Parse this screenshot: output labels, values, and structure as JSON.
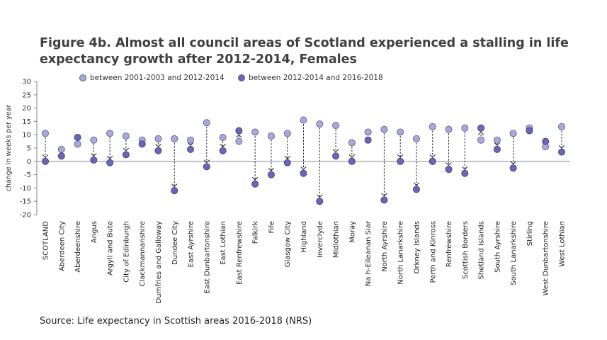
{
  "chart_data": {
    "type": "scatter",
    "title": "Figure 4b. Almost all council areas of Scotland experienced a stalling in life expectancy growth after 2012-2014, Females",
    "ylabel": "change in weeks per year",
    "ylim": [
      -20,
      30
    ],
    "yticks": [
      30,
      25,
      20,
      15,
      10,
      5,
      0,
      -5,
      -10,
      -15,
      -20
    ],
    "legend_position": "top",
    "categories": [
      "SCOTLAND",
      "Aberdeen City",
      "Aberdeenshire",
      "Angus",
      "Argyll and Bute",
      "City of Edinburgh",
      "Clackmannanshire",
      "Dumfries and Galloway",
      "Dundee City",
      "East Ayrshire",
      "East Dunbartonshire",
      "East Lothian",
      "East Renfrewshire",
      "Falkirk",
      "Fife",
      "Glasgow City",
      "Highland",
      "Inverclyde",
      "Midlothian",
      "Moray",
      "Na h-Eileanan Siar",
      "North Ayrshire",
      "North Lanarkshire",
      "Orkney Islands",
      "Perth and Kinross",
      "Renfrewshire",
      "Scottish Borders",
      "Shetland Islands",
      "South Ayrshire",
      "South Lanarkshire",
      "Stirling",
      "West Dunbartonshire",
      "West Lothian"
    ],
    "series": [
      {
        "name": "between 2001-2003 and 2012-2014",
        "color": "#a9a9d8",
        "values": [
          10.5,
          4.5,
          6.5,
          8,
          10.5,
          9.5,
          8,
          8.5,
          8.5,
          8,
          14.5,
          9,
          7.5,
          11,
          9.5,
          10.5,
          15.5,
          14,
          13.5,
          7,
          11,
          12,
          11,
          8.5,
          13,
          12,
          12.5,
          8,
          8,
          10.5,
          12.5,
          5.5,
          13
        ]
      },
      {
        "name": "between 2012-2014 and 2016-2018",
        "color": "#6a66b0",
        "values": [
          0,
          2,
          9,
          0.5,
          -0.5,
          2.5,
          6.5,
          4,
          -11,
          4.5,
          -2,
          4,
          11.5,
          -8.5,
          -5,
          -0.5,
          -4.5,
          -15,
          2,
          0,
          8,
          -14.5,
          0,
          -10.5,
          0,
          -3,
          -4.5,
          12.5,
          4.5,
          -2.5,
          11.5,
          7.5,
          3.5
        ]
      }
    ]
  },
  "source": "Source: Life expectancy in Scottish areas 2016-2018 (NRS)"
}
